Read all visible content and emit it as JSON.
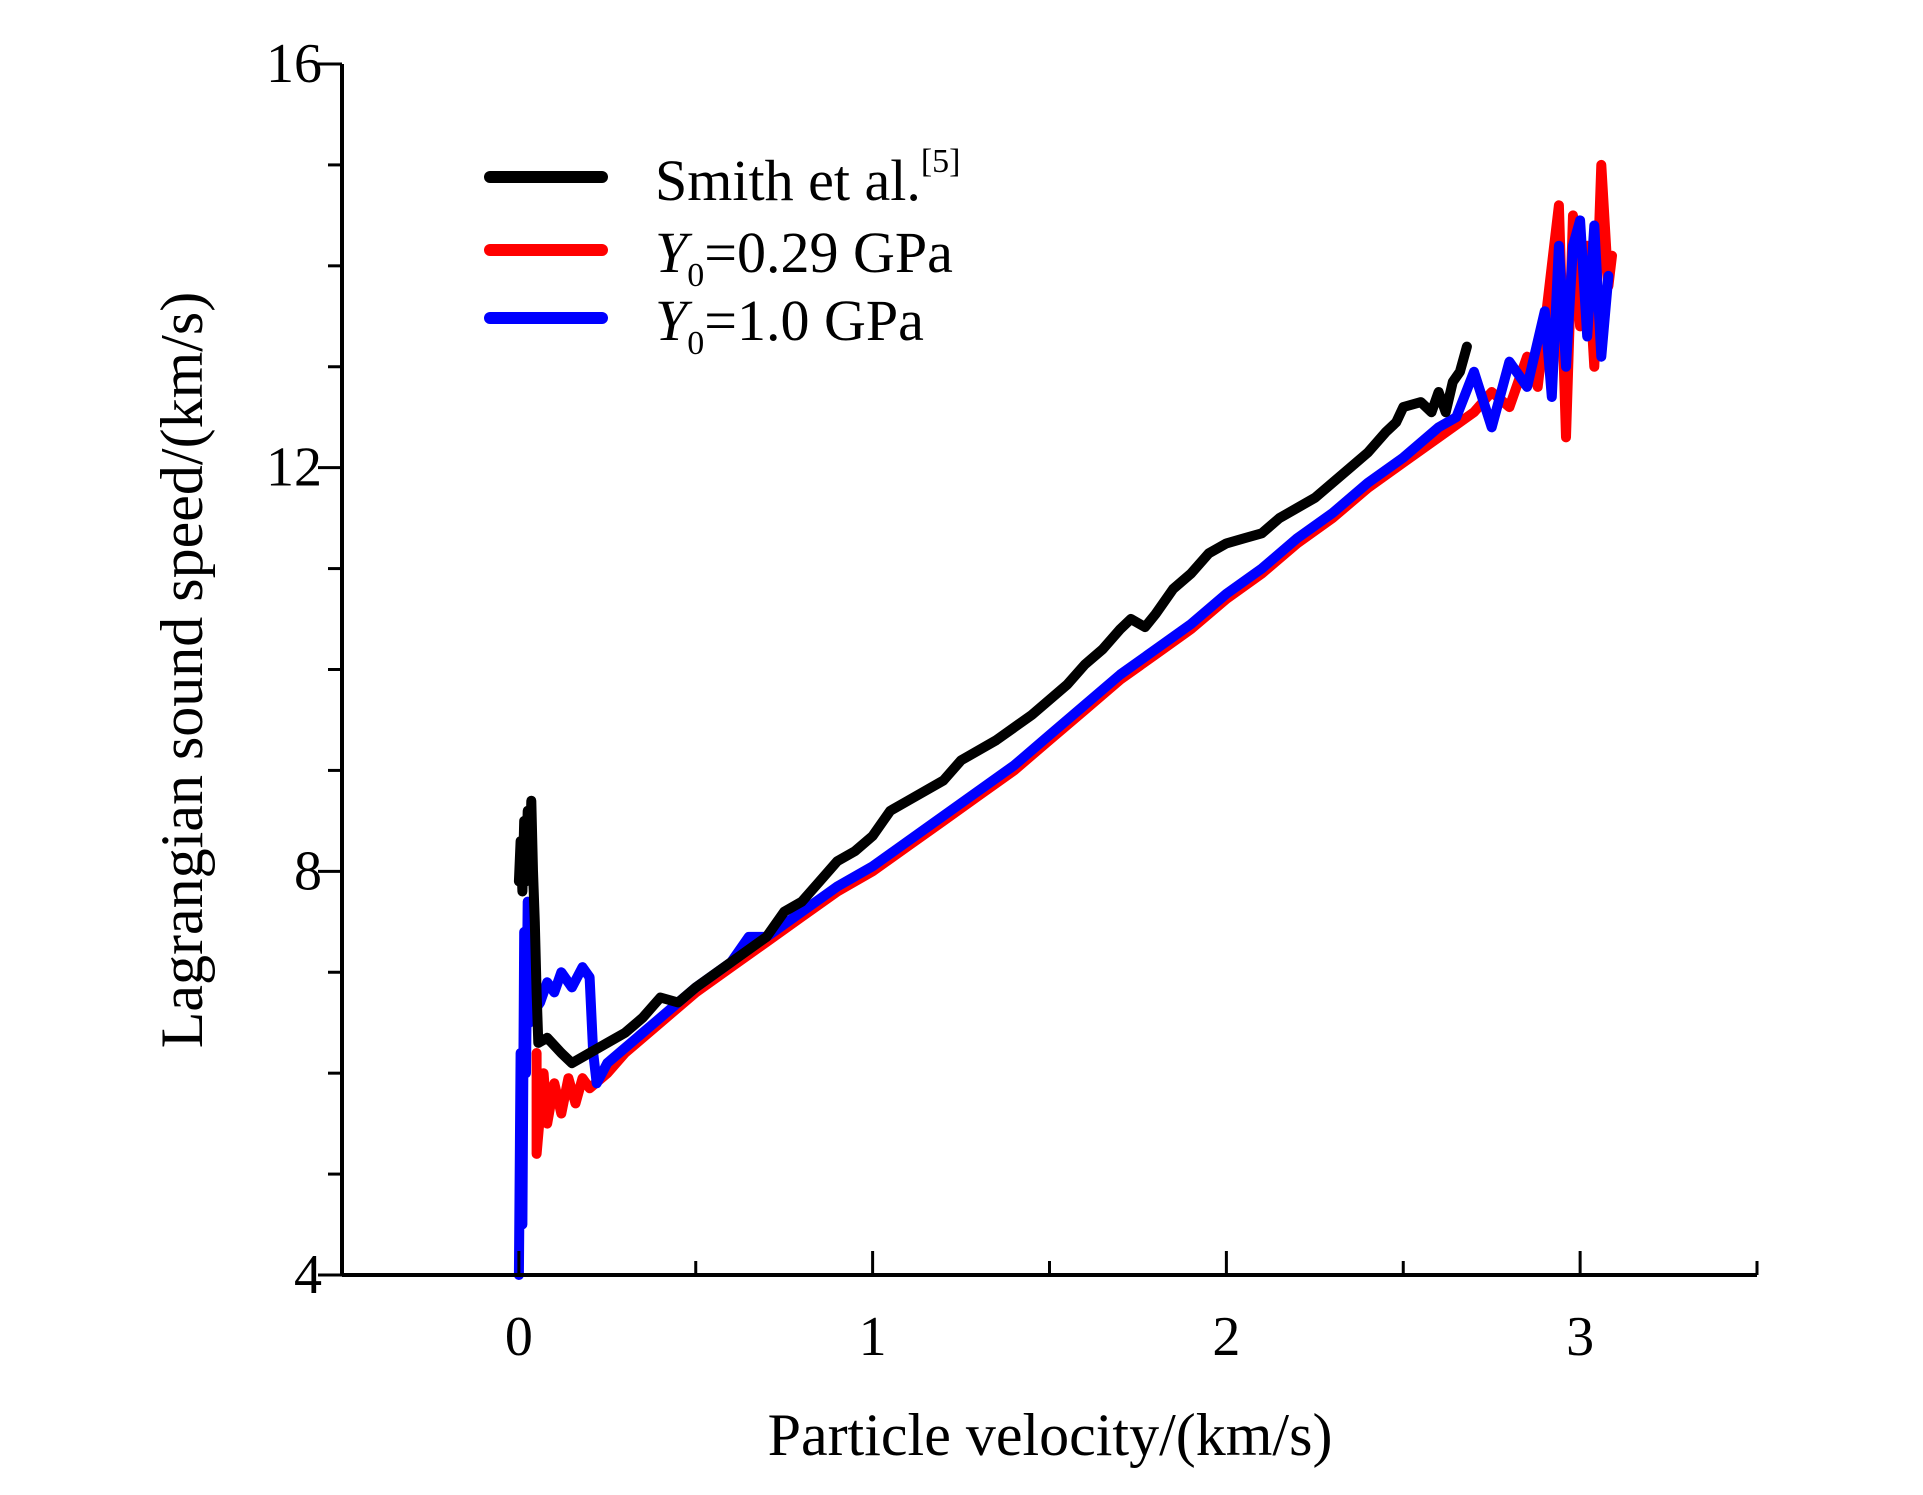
{
  "chart_data": {
    "type": "line",
    "xlabel": "Particle velocity/(km/s)",
    "ylabel": "Lagrangian sound speed/(km/s)",
    "xlim": [
      -0.5,
      3.5
    ],
    "ylim": [
      4,
      16
    ],
    "x_ticks": [
      "0",
      "1",
      "2",
      "3"
    ],
    "x_tick_values": [
      0,
      1,
      2,
      3
    ],
    "y_ticks": [
      "4",
      "8",
      "12",
      "16"
    ],
    "y_tick_values": [
      4,
      8,
      12,
      16
    ],
    "x_minor_step": 0.5,
    "y_minor_step": 1,
    "legend_position": "top-left",
    "grid": false,
    "series": [
      {
        "name": "Smith et al.",
        "legend_main": "Smith et al.",
        "legend_sup": "[5]",
        "color": "#000000",
        "points": [
          [
            0.0,
            7.9
          ],
          [
            0.005,
            8.3
          ],
          [
            0.01,
            7.8
          ],
          [
            0.015,
            8.5
          ],
          [
            0.02,
            7.9
          ],
          [
            0.025,
            8.6
          ],
          [
            0.03,
            8.0
          ],
          [
            0.035,
            8.7
          ],
          [
            0.04,
            8.0
          ],
          [
            0.045,
            7.5
          ],
          [
            0.05,
            6.8
          ],
          [
            0.055,
            6.3
          ],
          [
            0.08,
            6.35
          ],
          [
            0.12,
            6.2
          ],
          [
            0.15,
            6.1
          ],
          [
            0.2,
            6.2
          ],
          [
            0.25,
            6.3
          ],
          [
            0.3,
            6.4
          ],
          [
            0.35,
            6.55
          ],
          [
            0.4,
            6.75
          ],
          [
            0.45,
            6.7
          ],
          [
            0.5,
            6.85
          ],
          [
            0.6,
            7.1
          ],
          [
            0.7,
            7.35
          ],
          [
            0.75,
            7.6
          ],
          [
            0.8,
            7.7
          ],
          [
            0.85,
            7.9
          ],
          [
            0.9,
            8.1
          ],
          [
            0.95,
            8.2
          ],
          [
            1.0,
            8.35
          ],
          [
            1.05,
            8.6
          ],
          [
            1.1,
            8.7
          ],
          [
            1.2,
            8.9
          ],
          [
            1.25,
            9.1
          ],
          [
            1.35,
            9.3
          ],
          [
            1.45,
            9.55
          ],
          [
            1.55,
            9.85
          ],
          [
            1.6,
            10.05
          ],
          [
            1.65,
            10.2
          ],
          [
            1.7,
            10.4
          ],
          [
            1.73,
            10.5
          ],
          [
            1.77,
            10.42
          ],
          [
            1.8,
            10.55
          ],
          [
            1.85,
            10.8
          ],
          [
            1.9,
            10.95
          ],
          [
            1.95,
            11.15
          ],
          [
            2.0,
            11.25
          ],
          [
            2.05,
            11.3
          ],
          [
            2.1,
            11.35
          ],
          [
            2.15,
            11.5
          ],
          [
            2.2,
            11.6
          ],
          [
            2.25,
            11.7
          ],
          [
            2.3,
            11.85
          ],
          [
            2.35,
            12.0
          ],
          [
            2.4,
            12.15
          ],
          [
            2.45,
            12.35
          ],
          [
            2.48,
            12.45
          ],
          [
            2.5,
            12.6
          ],
          [
            2.55,
            12.65
          ],
          [
            2.58,
            12.55
          ],
          [
            2.6,
            12.75
          ],
          [
            2.62,
            12.55
          ],
          [
            2.64,
            12.85
          ],
          [
            2.66,
            12.95
          ],
          [
            2.68,
            13.2
          ]
        ]
      },
      {
        "name": "Y0=0.29 GPa",
        "legend_main": "Y",
        "legend_sub": "0",
        "legend_rest": "=0.29 GPa",
        "color": "#ff0000",
        "points": [
          [
            0.05,
            6.2
          ],
          [
            0.05,
            5.2
          ],
          [
            0.06,
            5.6
          ],
          [
            0.07,
            6.0
          ],
          [
            0.08,
            5.5
          ],
          [
            0.1,
            5.9
          ],
          [
            0.12,
            5.6
          ],
          [
            0.14,
            5.95
          ],
          [
            0.16,
            5.7
          ],
          [
            0.18,
            5.95
          ],
          [
            0.2,
            5.85
          ],
          [
            0.25,
            6.0
          ],
          [
            0.3,
            6.2
          ],
          [
            0.4,
            6.5
          ],
          [
            0.5,
            6.8
          ],
          [
            0.6,
            7.05
          ],
          [
            0.7,
            7.3
          ],
          [
            0.8,
            7.55
          ],
          [
            0.9,
            7.8
          ],
          [
            1.0,
            8.0
          ],
          [
            1.1,
            8.25
          ],
          [
            1.2,
            8.5
          ],
          [
            1.3,
            8.75
          ],
          [
            1.4,
            9.0
          ],
          [
            1.5,
            9.3
          ],
          [
            1.6,
            9.6
          ],
          [
            1.7,
            9.9
          ],
          [
            1.8,
            10.15
          ],
          [
            1.9,
            10.4
          ],
          [
            2.0,
            10.7
          ],
          [
            2.1,
            10.95
          ],
          [
            2.2,
            11.25
          ],
          [
            2.3,
            11.5
          ],
          [
            2.4,
            11.8
          ],
          [
            2.5,
            12.05
          ],
          [
            2.6,
            12.3
          ],
          [
            2.7,
            12.55
          ],
          [
            2.75,
            12.75
          ],
          [
            2.8,
            12.6
          ],
          [
            2.85,
            13.1
          ],
          [
            2.88,
            12.8
          ],
          [
            2.92,
            14.0
          ],
          [
            2.94,
            14.6
          ],
          [
            2.96,
            12.3
          ],
          [
            2.98,
            14.5
          ],
          [
            3.0,
            13.4
          ],
          [
            3.02,
            14.2
          ],
          [
            3.04,
            13.0
          ],
          [
            3.06,
            15.0
          ],
          [
            3.08,
            13.8
          ],
          [
            3.09,
            14.1
          ]
        ]
      },
      {
        "name": "Y0=1.0 GPa",
        "legend_main": "Y",
        "legend_sub": "0",
        "legend_rest": "=1.0 GPa",
        "color": "#0000ff",
        "points": [
          [
            0.0,
            4.0
          ],
          [
            0.005,
            6.2
          ],
          [
            0.01,
            4.5
          ],
          [
            0.015,
            7.4
          ],
          [
            0.02,
            6.0
          ],
          [
            0.025,
            7.7
          ],
          [
            0.03,
            6.5
          ],
          [
            0.035,
            7.0
          ],
          [
            0.04,
            6.6
          ],
          [
            0.06,
            6.7
          ],
          [
            0.08,
            6.9
          ],
          [
            0.1,
            6.8
          ],
          [
            0.12,
            7.0
          ],
          [
            0.15,
            6.85
          ],
          [
            0.18,
            7.05
          ],
          [
            0.2,
            6.95
          ],
          [
            0.21,
            6.2
          ],
          [
            0.22,
            5.9
          ],
          [
            0.25,
            6.1
          ],
          [
            0.3,
            6.25
          ],
          [
            0.4,
            6.55
          ],
          [
            0.5,
            6.85
          ],
          [
            0.6,
            7.1
          ],
          [
            0.65,
            7.35
          ],
          [
            0.7,
            7.35
          ],
          [
            0.8,
            7.6
          ],
          [
            0.9,
            7.85
          ],
          [
            1.0,
            8.05
          ],
          [
            1.1,
            8.3
          ],
          [
            1.2,
            8.55
          ],
          [
            1.3,
            8.8
          ],
          [
            1.4,
            9.05
          ],
          [
            1.5,
            9.35
          ],
          [
            1.6,
            9.65
          ],
          [
            1.7,
            9.95
          ],
          [
            1.8,
            10.2
          ],
          [
            1.9,
            10.45
          ],
          [
            2.0,
            10.75
          ],
          [
            2.1,
            11.0
          ],
          [
            2.2,
            11.3
          ],
          [
            2.3,
            11.55
          ],
          [
            2.4,
            11.85
          ],
          [
            2.5,
            12.1
          ],
          [
            2.6,
            12.4
          ],
          [
            2.65,
            12.5
          ],
          [
            2.7,
            12.95
          ],
          [
            2.75,
            12.4
          ],
          [
            2.8,
            13.05
          ],
          [
            2.85,
            12.8
          ],
          [
            2.9,
            13.55
          ],
          [
            2.92,
            12.7
          ],
          [
            2.94,
            14.2
          ],
          [
            2.96,
            13.0
          ],
          [
            2.98,
            14.2
          ],
          [
            3.0,
            14.45
          ],
          [
            3.02,
            13.3
          ],
          [
            3.04,
            14.4
          ],
          [
            3.06,
            13.1
          ],
          [
            3.08,
            13.9
          ]
        ]
      }
    ]
  }
}
